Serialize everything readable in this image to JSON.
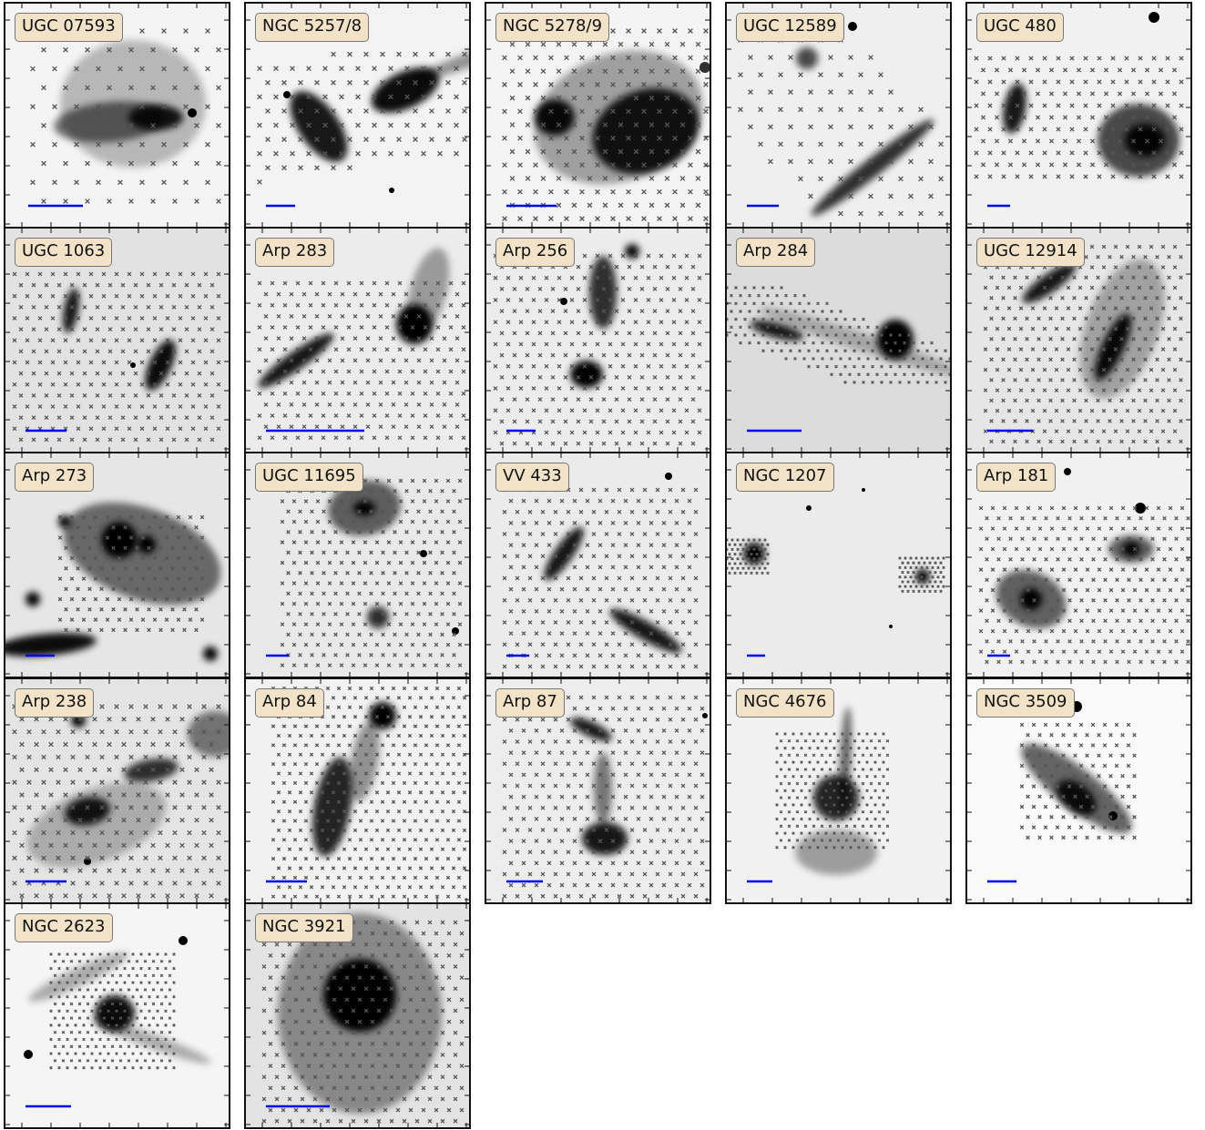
{
  "figure": {
    "panels": [
      {
        "name": "UGC 07593",
        "background": "#f4f4f4"
      },
      {
        "name": "NGC 5257/8",
        "background": "#f3f3f3"
      },
      {
        "name": "NGC 5278/9",
        "background": "#f4f4f4"
      },
      {
        "name": "UGC 12589",
        "background": "#efefef"
      },
      {
        "name": "UGC 480",
        "background": "#f1f1f1"
      },
      {
        "name": "UGC 1063",
        "background": "#e2e2e2"
      },
      {
        "name": "Arp 283",
        "background": "#ececec"
      },
      {
        "name": "Arp 256",
        "background": "#ececec"
      },
      {
        "name": "Arp 284",
        "background": "#dcdcdc"
      },
      {
        "name": "UGC 12914",
        "background": "#e6e6e6"
      },
      {
        "name": "Arp 273",
        "background": "#e6e6e6"
      },
      {
        "name": "UGC 11695",
        "background": "#e9e9e9"
      },
      {
        "name": "VV 433",
        "background": "#ebebeb"
      },
      {
        "name": "NGC 1207",
        "background": "#ebebeb"
      },
      {
        "name": "Arp 181",
        "background": "#f1f1f1"
      },
      {
        "name": "Arp 238",
        "background": "#e4e4e4"
      },
      {
        "name": "Arp 84",
        "background": "#f1f1f1"
      },
      {
        "name": "Arp 87",
        "background": "#ededed"
      },
      {
        "name": "NGC 4676",
        "background": "#f1f1f1"
      },
      {
        "name": "NGC 3509",
        "background": "#fafafa"
      },
      {
        "name": "NGC 2623",
        "background": "#f5f5f5"
      },
      {
        "name": "NGC 3921",
        "background": "#e3e3e3"
      }
    ],
    "colors": {
      "scale_bar": "#0000ee",
      "fiber_marker": "#555555",
      "label_bg": "#f2e3c8"
    },
    "icons": {
      "fiber_marker": "x-marker",
      "scale_bar": "horizontal-bar"
    }
  }
}
